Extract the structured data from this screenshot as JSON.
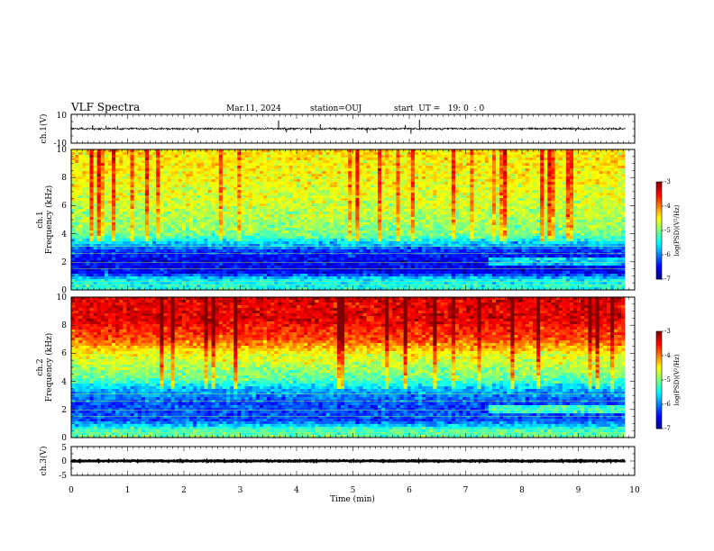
{
  "header": {
    "title": "VLF Spectra",
    "date": "Mar.11, 2024",
    "station": "station=OUJ",
    "start_ut": "start  UT =   19: 0  : 0"
  },
  "chart_data": [
    {
      "type": "line",
      "ylabel": "ch.1(V)",
      "ylim": [
        -10,
        10
      ],
      "y_ticks": [
        "10",
        "-10"
      ],
      "xlim": [
        0,
        10
      ],
      "data_extent_x": [
        0,
        9.83
      ],
      "baseline": 0,
      "noise_amplitude": 1.2,
      "spikes": [
        {
          "x": 0.38,
          "y": 2.5
        },
        {
          "x": 0.62,
          "y": 2.2
        },
        {
          "x": 0.82,
          "y": 2.0
        },
        {
          "x": 2.25,
          "y": -2.8
        },
        {
          "x": 3.68,
          "y": 5.8
        },
        {
          "x": 3.82,
          "y": -2.5
        },
        {
          "x": 4.25,
          "y": -3.2
        },
        {
          "x": 4.42,
          "y": 3.2
        },
        {
          "x": 5.25,
          "y": -2.8
        },
        {
          "x": 5.93,
          "y": 2.6
        },
        {
          "x": 6.03,
          "y": -3.5
        },
        {
          "x": 6.18,
          "y": 6.2
        },
        {
          "x": 8.95,
          "y": -1.6
        }
      ]
    },
    {
      "type": "heatmap",
      "channel": "ch.1",
      "ylabel": "Frequency (kHz)",
      "xlim": [
        0,
        10
      ],
      "ylim": [
        0,
        10
      ],
      "y_ticks": [
        "0",
        "2",
        "4",
        "6",
        "8",
        "10"
      ],
      "data_extent_x": [
        0,
        9.83
      ],
      "colorbar": {
        "label": "log(PSD)(V²/Hz)",
        "range": [
          -7,
          -3
        ],
        "ticks": [
          "-3",
          "-4",
          "-5",
          "-6",
          "-7"
        ]
      },
      "level_profile": [
        {
          "freq_khz": 0.0,
          "log_psd": -5.3
        },
        {
          "freq_khz": 0.8,
          "log_psd": -5.6
        },
        {
          "freq_khz": 1.2,
          "log_psd": -6.5
        },
        {
          "freq_khz": 2.0,
          "log_psd": -6.6
        },
        {
          "freq_khz": 2.8,
          "log_psd": -6.3
        },
        {
          "freq_khz": 3.2,
          "log_psd": -5.8
        },
        {
          "freq_khz": 4.0,
          "log_psd": -5.0
        },
        {
          "freq_khz": 6.0,
          "log_psd": -4.7
        },
        {
          "freq_khz": 8.0,
          "log_psd": -4.5
        },
        {
          "freq_khz": 10.0,
          "log_psd": -4.4
        }
      ]
    },
    {
      "type": "heatmap",
      "channel": "ch.2",
      "ylabel": "Frequency (kHz)",
      "xlim": [
        0,
        10
      ],
      "ylim": [
        0,
        10
      ],
      "y_ticks": [
        "0",
        "2",
        "4",
        "6",
        "8",
        "10"
      ],
      "data_extent_x": [
        0,
        9.83
      ],
      "colorbar": {
        "label": "log(PSD)(V²/Hz)",
        "range": [
          -7,
          -3
        ],
        "ticks": [
          "-3",
          "-4",
          "-5",
          "-6",
          "-7"
        ]
      },
      "level_profile": [
        {
          "freq_khz": 0.0,
          "log_psd": -5.0
        },
        {
          "freq_khz": 0.6,
          "log_psd": -5.3
        },
        {
          "freq_khz": 1.2,
          "log_psd": -6.2
        },
        {
          "freq_khz": 2.5,
          "log_psd": -6.2
        },
        {
          "freq_khz": 3.4,
          "log_psd": -5.8
        },
        {
          "freq_khz": 4.2,
          "log_psd": -5.1
        },
        {
          "freq_khz": 6.0,
          "log_psd": -4.5
        },
        {
          "freq_khz": 7.0,
          "log_psd": -3.8
        },
        {
          "freq_khz": 8.5,
          "log_psd": -3.4
        },
        {
          "freq_khz": 10.0,
          "log_psd": -3.4
        }
      ]
    },
    {
      "type": "line",
      "ylabel": "ch.3(V)",
      "ylim": [
        -5,
        5
      ],
      "y_ticks": [
        "5",
        "0",
        "-5"
      ],
      "xlim": [
        0,
        10
      ],
      "data_extent_x": [
        0,
        9.83
      ],
      "baseline": 0,
      "noise_amplitude": 0.3,
      "xlabel": "Time (min)",
      "x_ticks": [
        "0",
        "1",
        "2",
        "3",
        "4",
        "5",
        "6",
        "7",
        "8",
        "9",
        "10"
      ]
    }
  ]
}
